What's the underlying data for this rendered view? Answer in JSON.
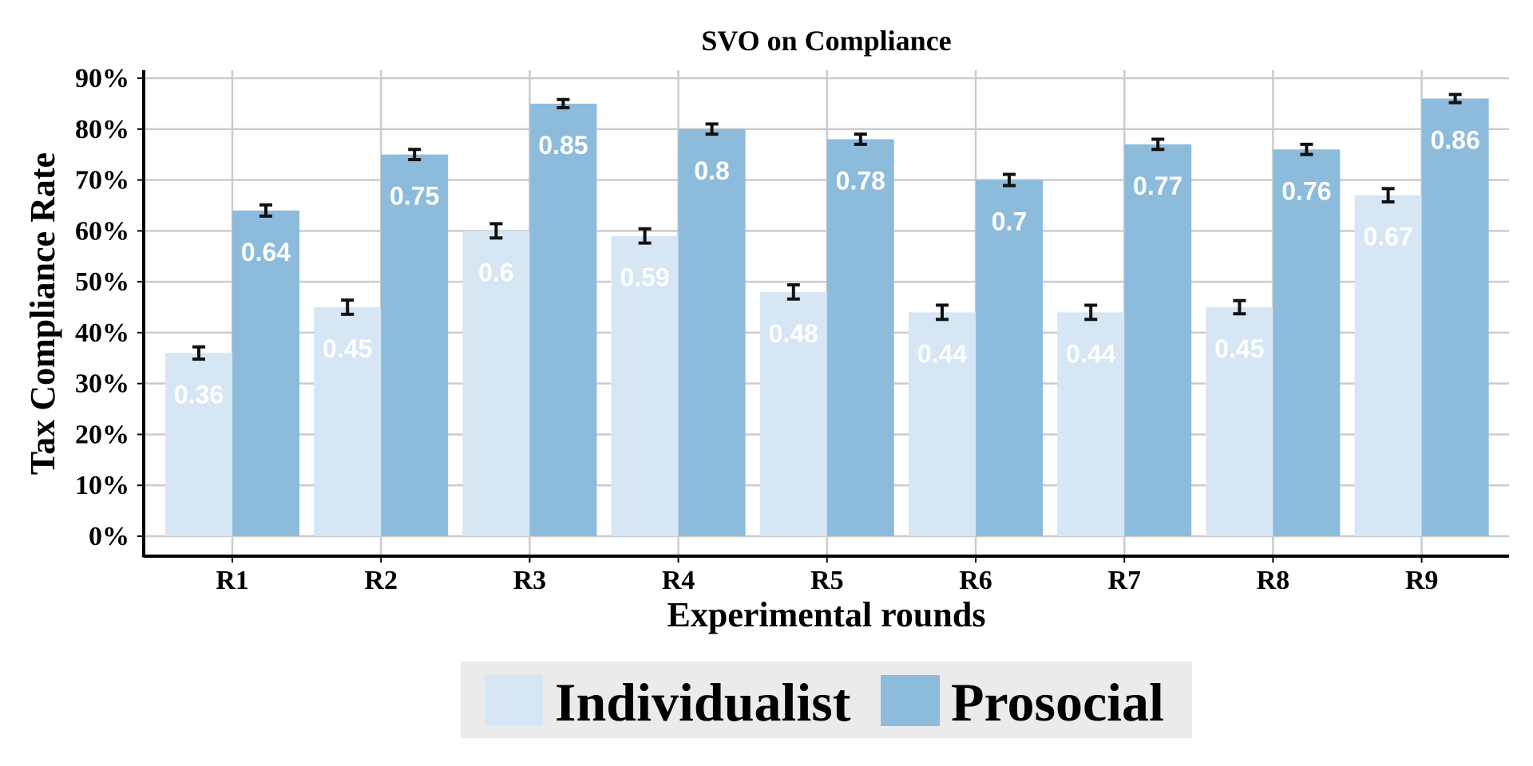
{
  "chart_data": {
    "type": "bar",
    "title": "SVO on Compliance",
    "xlabel": "Experimental rounds",
    "ylabel": "Tax Compliance Rate",
    "categories": [
      "R1",
      "R2",
      "R3",
      "R4",
      "R5",
      "R6",
      "R7",
      "R8",
      "R9"
    ],
    "ylim": [
      0,
      0.9
    ],
    "yticks": [
      0,
      0.1,
      0.2,
      0.3,
      0.4,
      0.5,
      0.6,
      0.7,
      0.8,
      0.9
    ],
    "ytick_labels": [
      "0%",
      "10%",
      "20%",
      "30%",
      "40%",
      "50%",
      "60%",
      "70%",
      "80%",
      "90%"
    ],
    "grid": true,
    "legend_position": "bottom-center",
    "series": [
      {
        "name": "Individualist",
        "color": "#d6e6f5",
        "values": [
          0.36,
          0.45,
          0.6,
          0.59,
          0.48,
          0.44,
          0.44,
          0.45,
          0.67
        ],
        "labels": [
          "0.36",
          "0.45",
          "0.6",
          "0.59",
          "0.48",
          "0.44",
          "0.44",
          "0.45",
          "0.67"
        ],
        "error": [
          0.012,
          0.014,
          0.014,
          0.014,
          0.014,
          0.014,
          0.014,
          0.013,
          0.013
        ]
      },
      {
        "name": "Prosocial",
        "color": "#8dbbdb",
        "values": [
          0.64,
          0.75,
          0.85,
          0.8,
          0.78,
          0.7,
          0.77,
          0.76,
          0.86
        ],
        "labels": [
          "0.64",
          "0.75",
          "0.85",
          "0.8",
          "0.78",
          "0.7",
          "0.77",
          "0.76",
          "0.86"
        ],
        "error": [
          0.011,
          0.01,
          0.008,
          0.01,
          0.01,
          0.011,
          0.01,
          0.01,
          0.008
        ]
      }
    ]
  }
}
